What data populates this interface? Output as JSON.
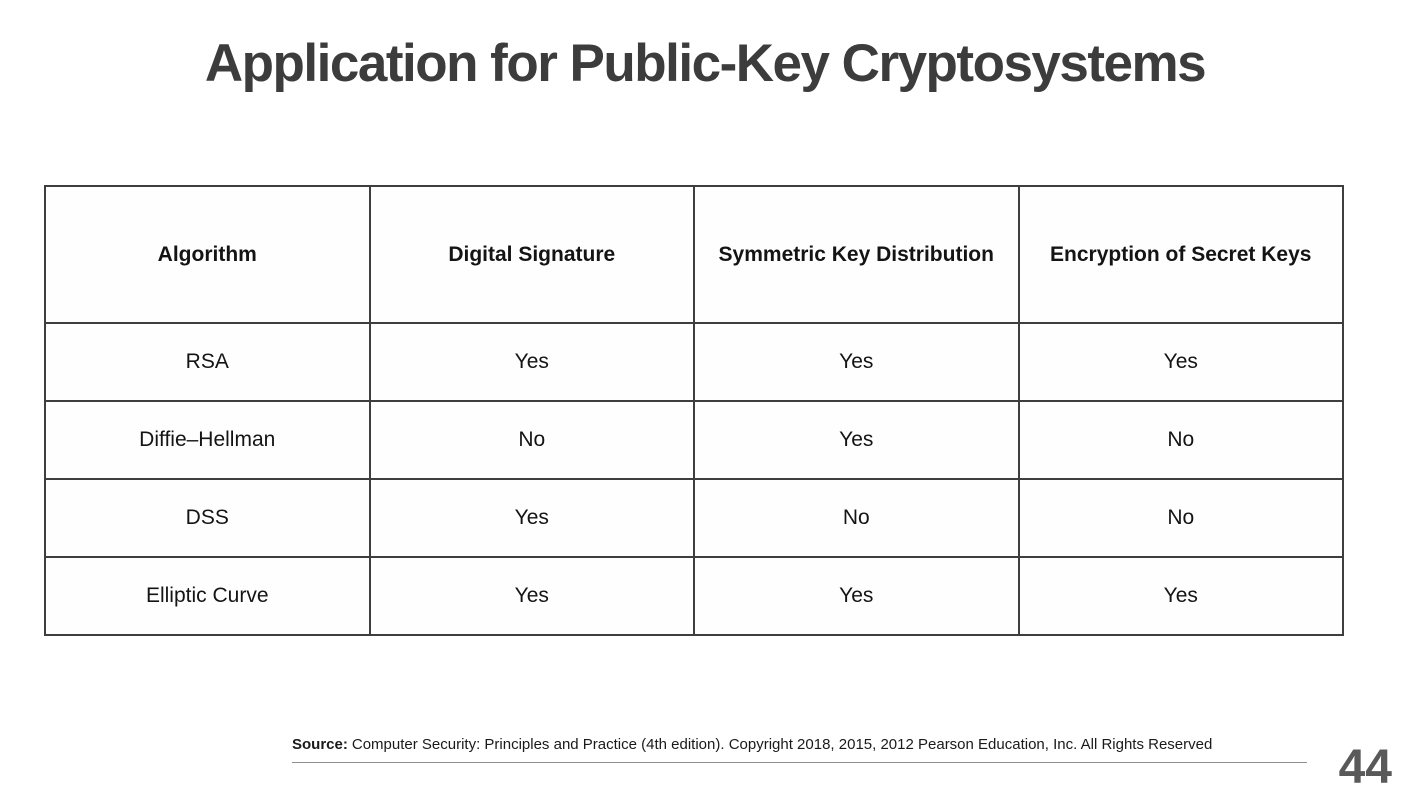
{
  "slide": {
    "title": "Application for Public-Key Cryptosystems"
  },
  "table": {
    "columns": [
      "Algorithm",
      "Digital Signature",
      "Symmetric Key Distribution",
      "Encryption of Secret Keys"
    ],
    "rows": [
      [
        "RSA",
        "Yes",
        "Yes",
        "Yes"
      ],
      [
        "Diffie–Hellman",
        "No",
        "Yes",
        "No"
      ],
      [
        "DSS",
        "Yes",
        "No",
        "No"
      ],
      [
        "Elliptic Curve",
        "Yes",
        "Yes",
        "Yes"
      ]
    ]
  },
  "footer": {
    "source_label": "Source:",
    "source_text": "Computer Security: Principles and Practice (4th edition). Copyright 2018, 2015, 2012 Pearson Education, Inc. All  Rights Reserved",
    "page_number": "44"
  },
  "colors": {
    "title": "#3c3c3c",
    "table_border": "#3e3e3e",
    "body_text": "#141414",
    "page_number": "#595959",
    "footer_rule": "#8f8f8f",
    "background": "#ffffff"
  }
}
